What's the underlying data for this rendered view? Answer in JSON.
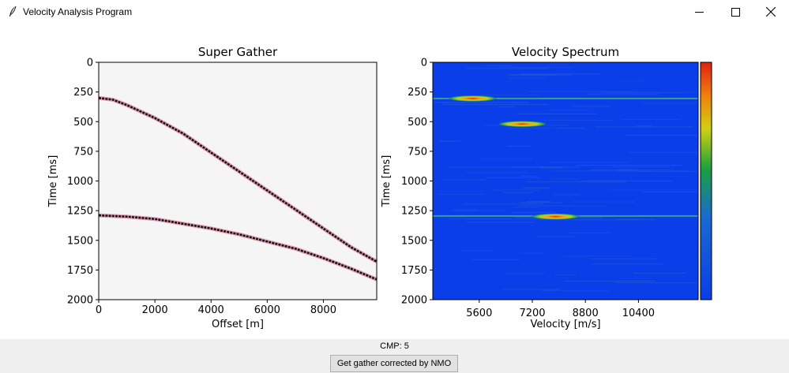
{
  "window": {
    "title": "Velocity Analysis Program",
    "icon": "feather-icon",
    "controls": [
      "minimize-icon",
      "maximize-icon",
      "close-icon"
    ]
  },
  "status": {
    "cmp_label": "CMP: 5"
  },
  "actions": {
    "nmo_button_label": "Get gather corrected by NMO"
  },
  "colors": {
    "gather_background": "#f5f5f5",
    "spectrum_background": "#0a3ee8",
    "event_core": "#1a0a2a",
    "event_halo": "#d06060"
  },
  "chart_data": [
    {
      "type": "scatter",
      "title": "Super Gather",
      "xlabel": "Offset [m]",
      "ylabel": "Time [ms]",
      "xlim": [
        0,
        9900
      ],
      "ylim": [
        2000,
        0
      ],
      "xticks": [
        0,
        2000,
        4000,
        6000,
        8000
      ],
      "yticks": [
        0,
        250,
        500,
        750,
        1000,
        1250,
        1500,
        1750,
        2000
      ],
      "series": [
        {
          "x": [
            0,
            500,
            1000,
            2000,
            3000,
            4000,
            5000,
            6000,
            7000,
            8000,
            9000,
            9900
          ],
          "y": [
            300,
            315,
            360,
            470,
            600,
            760,
            920,
            1080,
            1240,
            1400,
            1560,
            1680
          ]
        },
        {
          "x": [
            0,
            1000,
            2000,
            3000,
            4000,
            5000,
            6000,
            7000,
            8000,
            9000,
            9900
          ],
          "y": [
            1290,
            1300,
            1320,
            1360,
            1400,
            1450,
            1510,
            1570,
            1650,
            1740,
            1830
          ]
        }
      ]
    },
    {
      "type": "heatmap",
      "title": "Velocity Spectrum",
      "xlabel": "Velocity [m/s]",
      "ylabel": "Time [ms]",
      "xlim": [
        4200,
        12200
      ],
      "ylim": [
        2000,
        0
      ],
      "xticks": [
        5600,
        7200,
        8800,
        10400
      ],
      "yticks": [
        0,
        250,
        500,
        750,
        1000,
        1250,
        1500,
        1750,
        2000
      ],
      "colorbar": "jet",
      "peaks": [
        {
          "velocity": 5400,
          "time": 305
        },
        {
          "velocity": 6900,
          "time": 520
        },
        {
          "velocity": 7900,
          "time": 1300
        }
      ],
      "horizontal_lines_time": [
        305,
        1295
      ]
    }
  ]
}
